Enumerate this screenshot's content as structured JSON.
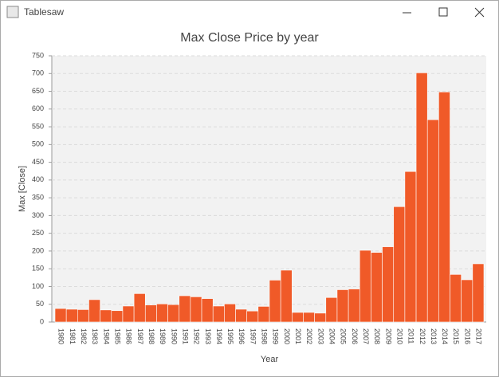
{
  "window": {
    "title": "Tablesaw"
  },
  "chart_data": {
    "type": "bar",
    "title": "Max Close Price by year",
    "x_label": "Year",
    "y_label": "Max [Close]",
    "categories": [
      "1980",
      "1981",
      "1982",
      "1983",
      "1984",
      "1985",
      "1986",
      "1987",
      "1988",
      "1989",
      "1990",
      "1991",
      "1992",
      "1993",
      "1994",
      "1995",
      "1996",
      "1997",
      "1998",
      "1999",
      "2000",
      "2001",
      "2002",
      "2003",
      "2004",
      "2005",
      "2006",
      "2007",
      "2008",
      "2009",
      "2010",
      "2011",
      "2012",
      "2013",
      "2014",
      "2015",
      "2016",
      "2017"
    ],
    "values": [
      38,
      36,
      35,
      63,
      34,
      32,
      45,
      80,
      48,
      51,
      49,
      74,
      71,
      66,
      45,
      51,
      36,
      31,
      44,
      118,
      146,
      27,
      27,
      25,
      69,
      91,
      93,
      202,
      196,
      212,
      325,
      424,
      702,
      570,
      648,
      134,
      119,
      164
    ],
    "color": "#f05a28",
    "ylim": [
      0,
      750
    ],
    "yticks": [
      0,
      50,
      100,
      150,
      200,
      250,
      300,
      350,
      400,
      450,
      500,
      550,
      600,
      650,
      700,
      750
    ],
    "grid": true
  }
}
